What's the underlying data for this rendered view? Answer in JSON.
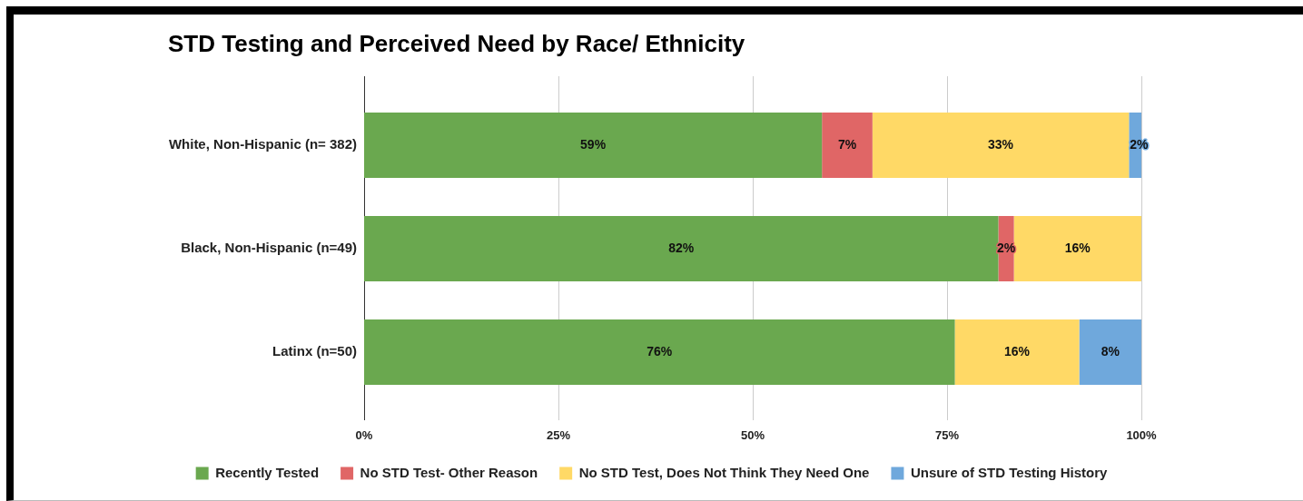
{
  "chart_data": {
    "type": "bar",
    "orientation": "horizontal",
    "stacked": true,
    "title": "STD Testing and Perceived Need by Race/ Ethnicity",
    "categories": [
      "White, Non-Hispanic (n= 382)",
      "Black, Non-Hispanic (n=49)",
      "Latinx (n=50)"
    ],
    "series": [
      {
        "name": "Recently Tested",
        "color": "#6aa84f",
        "values": [
          58.9,
          81.6,
          76
        ],
        "value_labels": [
          "59%",
          "82%",
          "76%"
        ]
      },
      {
        "name": "No STD Test- Other Reason",
        "color": "#e06666",
        "values": [
          6.5,
          2.0,
          null
        ],
        "value_labels": [
          "7%",
          "2%",
          null
        ]
      },
      {
        "name": "No STD Test, Does Not Think They Need One",
        "color": "#ffd966",
        "values": [
          33.0,
          16.4,
          16
        ],
        "value_labels": [
          "33%",
          "16%",
          "16%"
        ]
      },
      {
        "name": "Unsure of STD Testing History",
        "color": "#6fa8dc",
        "values": [
          1.6,
          null,
          8
        ],
        "value_labels": [
          "2%",
          null,
          "8%"
        ]
      }
    ],
    "xlim": [
      0,
      100
    ],
    "xticks": [
      {
        "value": 0,
        "label": "0%"
      },
      {
        "value": 25,
        "label": "25%"
      },
      {
        "value": 50,
        "label": "50%"
      },
      {
        "value": 75,
        "label": "75%"
      },
      {
        "value": 100,
        "label": "100%"
      }
    ],
    "grid": "x",
    "legend": "bottom"
  }
}
